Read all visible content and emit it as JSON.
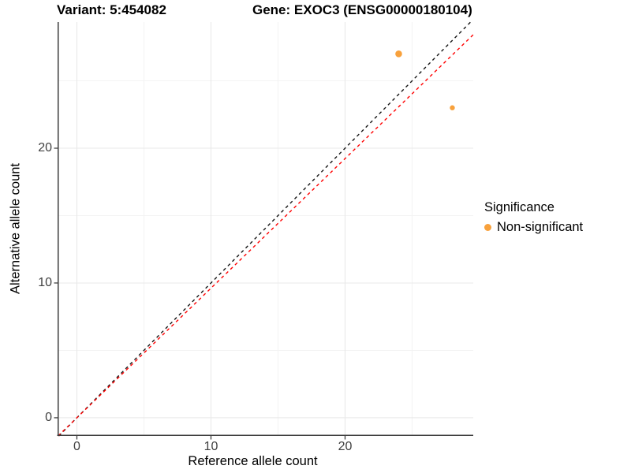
{
  "titles": {
    "left": "Variant: 5:454082",
    "right": "Gene: EXOC3 (ENSG00000180104)"
  },
  "legend": {
    "title": "Significance",
    "items": [
      {
        "label": "Non-significant",
        "color": "#F8A13C"
      }
    ]
  },
  "colors": {
    "point": "#F8A13C",
    "identity_line": "#151515",
    "ratio_line": "#FF0000",
    "grid_major": "#E8E8E8",
    "grid_minor": "#F3F3F3",
    "axis_line": "#3B3B3B",
    "tick_mark": "#333333",
    "tick_text": "#404040"
  },
  "chart_data": {
    "type": "scatter",
    "title": "Variant: 5:454082 | Gene: EXOC3 (ENSG00000180104)",
    "xlabel": "Reference allele count",
    "ylabel": "Alternative allele count",
    "xlim": [
      -1.44,
      29.56
    ],
    "ylim": [
      -1.35,
      29.36
    ],
    "x_major_ticks": [
      0,
      10,
      20
    ],
    "y_major_ticks": [
      0,
      10,
      20
    ],
    "x_minor_ticks": [
      5,
      15,
      25
    ],
    "y_minor_ticks": [
      5,
      15,
      25
    ],
    "grid": true,
    "legend_position": "right",
    "series": [
      {
        "name": "Non-significant",
        "color": "#F8A13C",
        "points": [
          {
            "x": 24,
            "y": 27,
            "r": 4.3
          },
          {
            "x": 28,
            "y": 23,
            "r": 3.2
          }
        ]
      }
    ],
    "lines": [
      {
        "name": "identity",
        "slope": 1,
        "intercept": 0,
        "style": "dashed",
        "color": "#151515"
      },
      {
        "name": "observed-ratio",
        "slope": 0.9615,
        "intercept": 0,
        "style": "dashed",
        "color": "#FF0000"
      }
    ]
  }
}
